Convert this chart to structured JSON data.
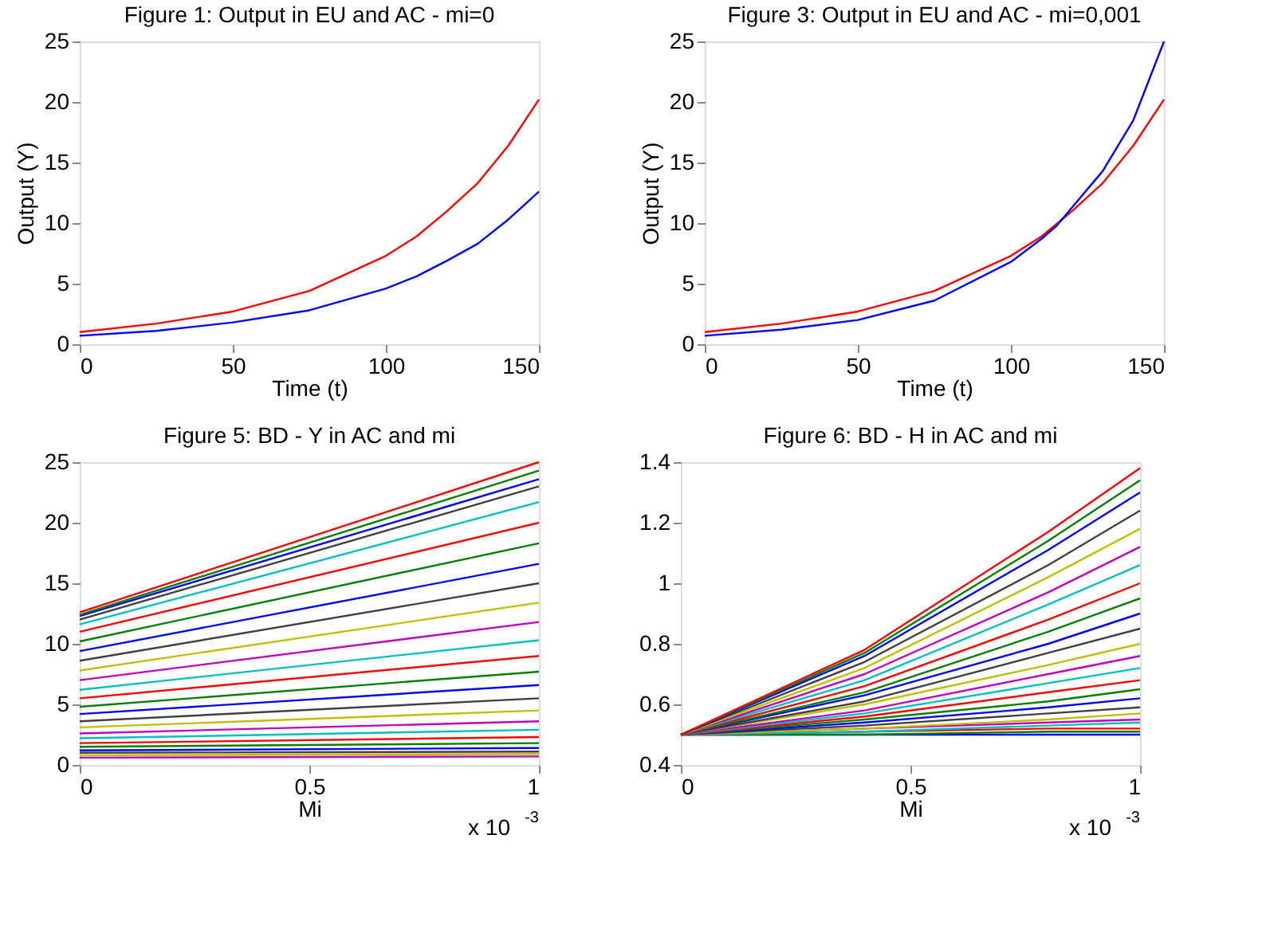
{
  "chart_data": [
    {
      "type": "line",
      "title": "Figure 1: Output in EU and AC - mi=0",
      "xlabel": "Time (t)",
      "ylabel": "Output (Y)",
      "xlim": [
        0,
        150
      ],
      "xticks": [
        0,
        50,
        100,
        150
      ],
      "ylim": [
        0,
        25
      ],
      "yticks": [
        0,
        5,
        10,
        15,
        20,
        25
      ],
      "grid": false,
      "legend": false,
      "marker": "none",
      "line_style": "solid",
      "series": [
        {
          "color": "#ff0000",
          "x": [
            0,
            25,
            50,
            75,
            100,
            110,
            120,
            130,
            140,
            150
          ],
          "values": [
            1.0,
            1.7,
            2.7,
            4.4,
            7.3,
            8.9,
            11.0,
            13.3,
            16.4,
            20.2
          ]
        },
        {
          "color": "#0000ff",
          "x": [
            0,
            25,
            50,
            75,
            100,
            110,
            120,
            130,
            140,
            150
          ],
          "values": [
            0.7,
            1.1,
            1.8,
            2.8,
            4.6,
            5.6,
            6.9,
            8.3,
            10.3,
            12.6
          ]
        }
      ]
    },
    {
      "type": "line",
      "title": "Figure 3: Output in EU and AC - mi=0,001",
      "xlabel": "Time (t)",
      "ylabel": "Output (Y)",
      "xlim": [
        0,
        150
      ],
      "xticks": [
        0,
        50,
        100,
        150
      ],
      "ylim": [
        0,
        25
      ],
      "yticks": [
        0,
        5,
        10,
        15,
        20,
        25
      ],
      "grid": false,
      "legend": false,
      "marker": "none",
      "line_style": "solid",
      "series": [
        {
          "color": "#ff0000",
          "x": [
            0,
            25,
            50,
            75,
            100,
            110,
            120,
            130,
            140,
            150
          ],
          "values": [
            1.0,
            1.7,
            2.7,
            4.4,
            7.3,
            8.9,
            11.0,
            13.3,
            16.4,
            20.2
          ]
        },
        {
          "color": "#0000ff",
          "x": [
            0,
            25,
            50,
            75,
            100,
            110,
            115,
            120,
            130,
            140,
            150
          ],
          "values": [
            0.7,
            1.2,
            2.0,
            3.6,
            6.8,
            8.7,
            9.8,
            11.3,
            14.3,
            18.5,
            25.0
          ]
        }
      ]
    },
    {
      "type": "line",
      "title": "Figure 5: BD - Y in AC and mi",
      "xlabel": "Mi",
      "annotations": [
        "x 10$^{-3}$"
      ],
      "xlim": [
        0,
        1
      ],
      "xticks": [
        0,
        0.5,
        1
      ],
      "ylim": [
        0,
        25
      ],
      "yticks": [
        0,
        5,
        10,
        15,
        20,
        25
      ],
      "grid": false,
      "legend": false,
      "marker": "none",
      "line_style": "solid",
      "x": [
        0,
        1
      ],
      "series": [
        {
          "color": "#bf00bf",
          "values": [
            0.6,
            0.7
          ]
        },
        {
          "color": "#bfbf00",
          "values": [
            0.8,
            0.9
          ]
        },
        {
          "color": "#404040",
          "values": [
            1.0,
            1.1
          ]
        },
        {
          "color": "#0000ff",
          "values": [
            1.2,
            1.4
          ]
        },
        {
          "color": "#008000",
          "values": [
            1.5,
            1.8
          ]
        },
        {
          "color": "#ff0000",
          "values": [
            1.8,
            2.3
          ]
        },
        {
          "color": "#00bfbf",
          "values": [
            2.2,
            2.9
          ]
        },
        {
          "color": "#bf00bf",
          "values": [
            2.6,
            3.6
          ]
        },
        {
          "color": "#bfbf00",
          "values": [
            3.1,
            4.5
          ]
        },
        {
          "color": "#404040",
          "values": [
            3.6,
            5.5
          ]
        },
        {
          "color": "#0000ff",
          "values": [
            4.2,
            6.6
          ]
        },
        {
          "color": "#008000",
          "values": [
            4.8,
            7.7
          ]
        },
        {
          "color": "#ff0000",
          "values": [
            5.5,
            9.0
          ]
        },
        {
          "color": "#00bfbf",
          "values": [
            6.2,
            10.3
          ]
        },
        {
          "color": "#bf00bf",
          "values": [
            7.0,
            11.8
          ]
        },
        {
          "color": "#bfbf00",
          "values": [
            7.8,
            13.4
          ]
        },
        {
          "color": "#404040",
          "values": [
            8.6,
            15.0
          ]
        },
        {
          "color": "#0000ff",
          "values": [
            9.4,
            16.6
          ]
        },
        {
          "color": "#008000",
          "values": [
            10.2,
            18.3
          ]
        },
        {
          "color": "#ff0000",
          "values": [
            11.0,
            20.0
          ]
        },
        {
          "color": "#00bfbf",
          "values": [
            11.6,
            21.7
          ]
        },
        {
          "color": "#404040",
          "values": [
            12.0,
            23.0
          ]
        },
        {
          "color": "#0000ff",
          "values": [
            12.3,
            23.6
          ]
        },
        {
          "color": "#008000",
          "values": [
            12.4,
            24.3
          ]
        },
        {
          "color": "#ff0000",
          "values": [
            12.6,
            25.0
          ]
        }
      ]
    },
    {
      "type": "line",
      "title": "Figure 6: BD - H in AC and mi",
      "xlabel": "Mi",
      "annotations": [
        "x 10$^{-3}$"
      ],
      "xlim": [
        0,
        1
      ],
      "xticks": [
        0,
        0.5,
        1
      ],
      "ylim": [
        0.4,
        1.4
      ],
      "yticks": [
        0.4,
        0.6,
        0.8,
        1,
        1.2,
        1.4
      ],
      "grid": false,
      "legend": false,
      "marker": "none",
      "line_style": "solid",
      "x": [
        0,
        0.4,
        0.8,
        1
      ],
      "series": [
        {
          "color": "#0000ff",
          "values": [
            0.5,
            0.5,
            0.5,
            0.5
          ]
        },
        {
          "color": "#008000",
          "values": [
            0.5,
            0.5,
            0.51,
            0.51
          ]
        },
        {
          "color": "#ff0000",
          "values": [
            0.5,
            0.51,
            0.52,
            0.52
          ]
        },
        {
          "color": "#00bfbf",
          "values": [
            0.5,
            0.51,
            0.53,
            0.54
          ]
        },
        {
          "color": "#bf00bf",
          "values": [
            0.5,
            0.52,
            0.54,
            0.55
          ]
        },
        {
          "color": "#bfbf00",
          "values": [
            0.5,
            0.52,
            0.55,
            0.57
          ]
        },
        {
          "color": "#404040",
          "values": [
            0.5,
            0.53,
            0.57,
            0.59
          ]
        },
        {
          "color": "#0000ff",
          "values": [
            0.5,
            0.54,
            0.59,
            0.62
          ]
        },
        {
          "color": "#008000",
          "values": [
            0.5,
            0.55,
            0.61,
            0.65
          ]
        },
        {
          "color": "#ff0000",
          "values": [
            0.5,
            0.56,
            0.64,
            0.68
          ]
        },
        {
          "color": "#00bfbf",
          "values": [
            0.5,
            0.57,
            0.67,
            0.72
          ]
        },
        {
          "color": "#bf00bf",
          "values": [
            0.5,
            0.58,
            0.7,
            0.76
          ]
        },
        {
          "color": "#bfbf00",
          "values": [
            0.5,
            0.6,
            0.73,
            0.8
          ]
        },
        {
          "color": "#404040",
          "values": [
            0.5,
            0.61,
            0.77,
            0.85
          ]
        },
        {
          "color": "#0000ff",
          "values": [
            0.5,
            0.63,
            0.8,
            0.9
          ]
        },
        {
          "color": "#008000",
          "values": [
            0.5,
            0.64,
            0.84,
            0.95
          ]
        },
        {
          "color": "#ff0000",
          "values": [
            0.5,
            0.66,
            0.88,
            1.0
          ]
        },
        {
          "color": "#00bfbf",
          "values": [
            0.5,
            0.68,
            0.93,
            1.06
          ]
        },
        {
          "color": "#bf00bf",
          "values": [
            0.5,
            0.7,
            0.97,
            1.12
          ]
        },
        {
          "color": "#bfbf00",
          "values": [
            0.5,
            0.72,
            1.02,
            1.18
          ]
        },
        {
          "color": "#404040",
          "values": [
            0.5,
            0.74,
            1.06,
            1.24
          ]
        },
        {
          "color": "#0000ff",
          "values": [
            0.5,
            0.76,
            1.11,
            1.3
          ]
        },
        {
          "color": "#008000",
          "values": [
            0.5,
            0.77,
            1.14,
            1.34
          ]
        },
        {
          "color": "#ff0000",
          "values": [
            0.5,
            0.78,
            1.17,
            1.38
          ]
        }
      ]
    }
  ]
}
